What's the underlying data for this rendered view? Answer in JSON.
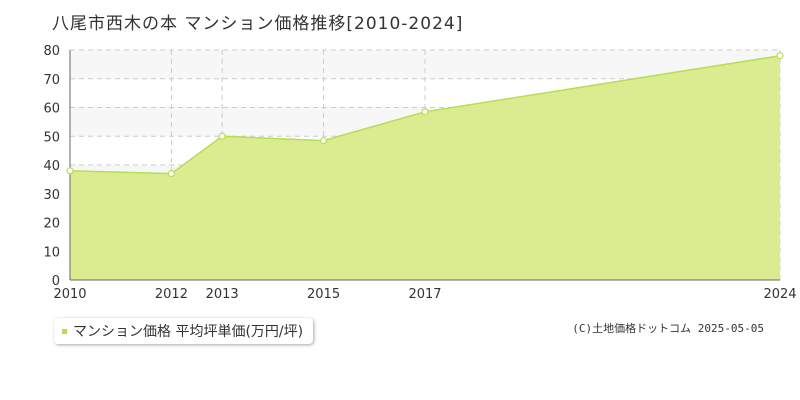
{
  "chart_data": {
    "type": "area",
    "title": "八尾市西木の本 マンション価格推移[2010-2024]",
    "x": [
      2010,
      2012,
      2013,
      2015,
      2017,
      2024
    ],
    "xtick_labels": [
      "2010",
      "2012",
      "2013",
      "2015",
      "2017",
      "2024"
    ],
    "series": [
      {
        "name": "マンション価格 平均坪単価(万円/坪)",
        "values": [
          38,
          37,
          50,
          48.5,
          58.5,
          78
        ]
      }
    ],
    "ylim": [
      0,
      80
    ],
    "yticks": [
      0,
      10,
      20,
      30,
      40,
      50,
      60,
      70,
      80
    ],
    "grid": true,
    "legend_position": "bottom-left",
    "colors": {
      "fill": "#dbec90",
      "line": "#b7dc55",
      "marker_fill": "#ffffff",
      "band": "#f7f7f7",
      "grid": "#cccccc"
    }
  },
  "credit": "(C)土地価格ドットコム 2025-05-05"
}
